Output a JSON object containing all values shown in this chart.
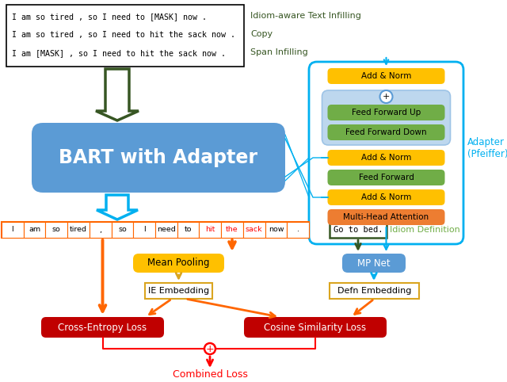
{
  "bg_color": "#ffffff",
  "green_text_lines": [
    "Idiom-aware Text Infilling",
    "Copy",
    "Span Infilling"
  ],
  "input_lines": [
    "I am so tired , so I need to [MASK] now .",
    "I am so tired , so I need to hit the sack now .",
    "I am [MASK] , so I need to hit the sack now ."
  ],
  "bart_box_color": "#5B9BD5",
  "bart_text": "BART with Adapter",
  "bart_text_color": "#ffffff",
  "adapter_border_color": "#00B0F0",
  "adapter_label_color": "#00B0F0",
  "adapter_boxes": [
    {
      "label": "Add & Norm",
      "color": "#FFC000"
    },
    {
      "label": "Feed Forward Up",
      "color": "#70AD47"
    },
    {
      "label": "Feed Forward Down",
      "color": "#70AD47"
    },
    {
      "label": "Add & Norm",
      "color": "#FFC000"
    },
    {
      "label": "Feed Forward",
      "color": "#70AD47"
    },
    {
      "label": "Add & Norm",
      "color": "#FFC000"
    },
    {
      "label": "Multi-Head Attention",
      "color": "#ED7D31"
    }
  ],
  "token_words": [
    "I",
    "am",
    "so",
    "tired",
    ",",
    "so",
    "I",
    "need",
    "to",
    "hit",
    "the",
    "sack",
    "now",
    "."
  ],
  "token_highlight": [
    9,
    10,
    11
  ],
  "token_highlight_color": "#FF0000",
  "token_border_color": "#FF6600",
  "mean_pool_color": "#FFC000",
  "cross_entropy_color": "#C00000",
  "cosine_sim_color": "#C00000",
  "combined_loss_color": "#FF0000",
  "mpnet_color": "#5B9BD5",
  "go_to_bed_border": "#375623",
  "idiom_def_label_color": "#70AD47",
  "green_arrow_color": "#375623",
  "blue_arrow_color": "#00B0F0",
  "orange_arrow_color": "#FF6600",
  "yellow_arrow_color": "#DAA520",
  "red_arrow_color": "#FF0000"
}
